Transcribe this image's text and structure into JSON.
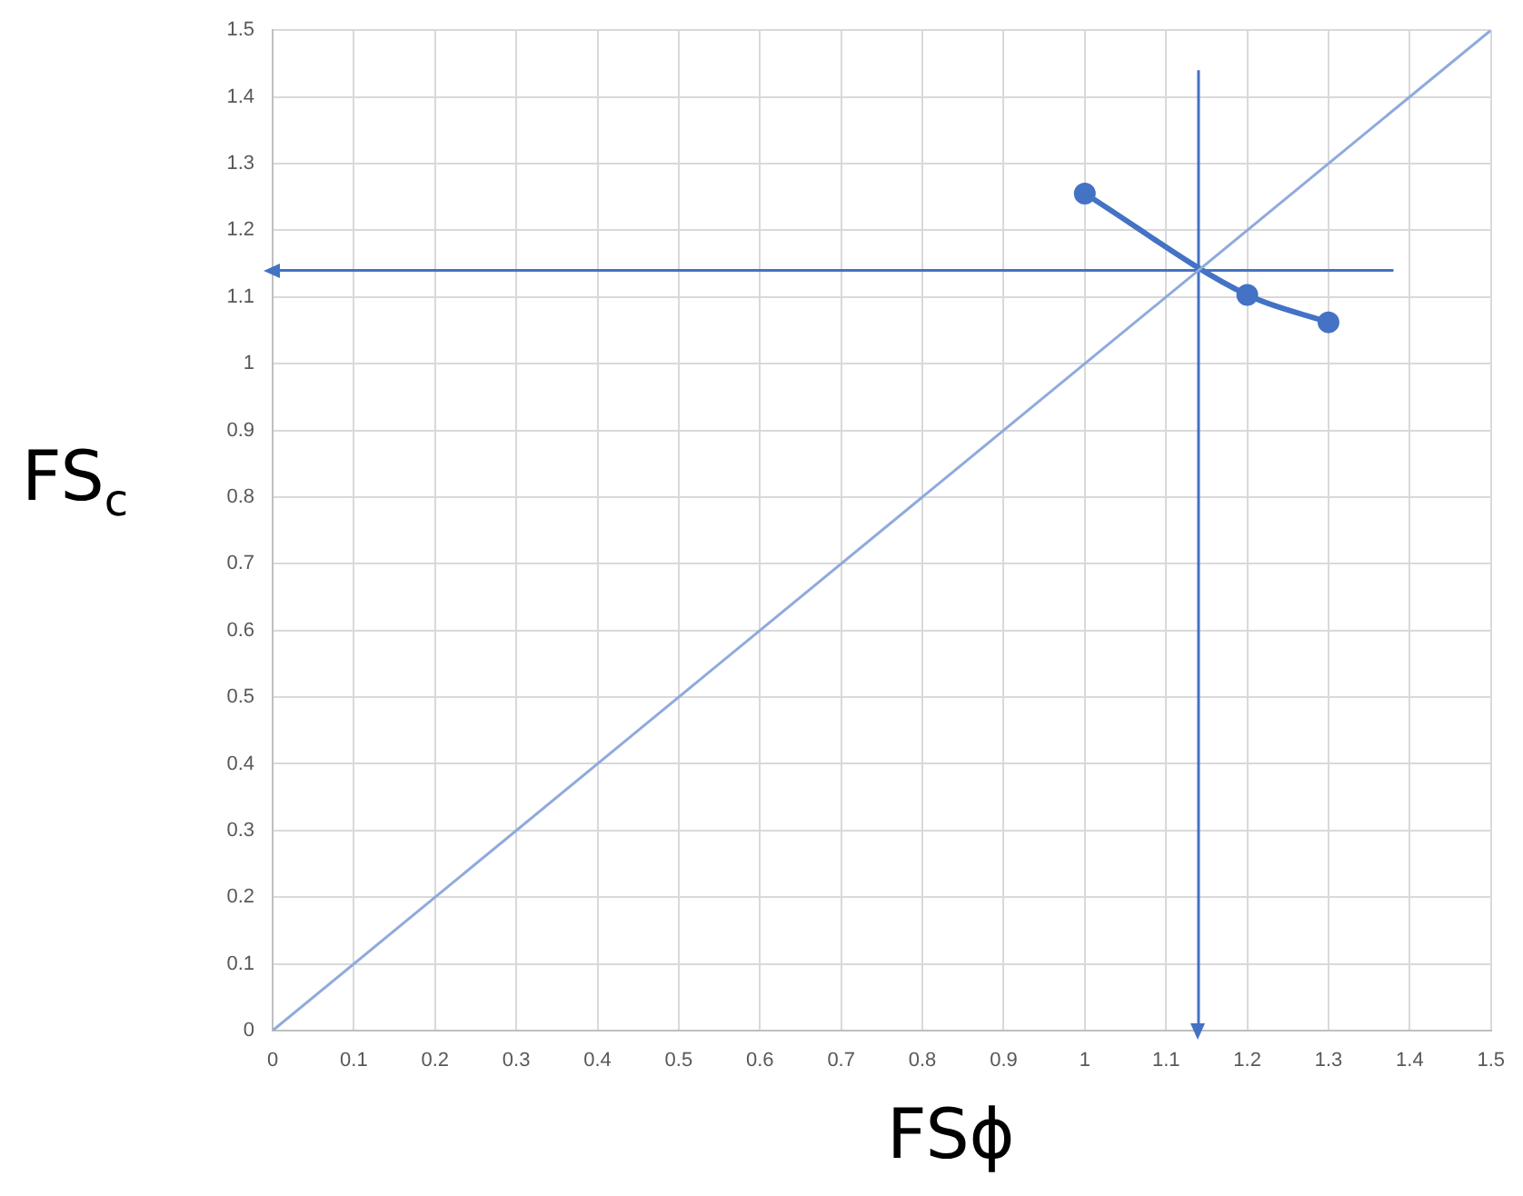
{
  "chart_data": {
    "type": "line",
    "xlabel": "FSϕ",
    "ylabel": "FS$_{c}$",
    "xlim": [
      0,
      1.5
    ],
    "ylim": [
      0,
      1.5
    ],
    "xticks": [
      0,
      0.1,
      0.2,
      0.3,
      0.4,
      0.5,
      0.6,
      0.7,
      0.8,
      0.9,
      1,
      1.1,
      1.2,
      1.3,
      1.4,
      1.5
    ],
    "yticks": [
      0,
      0.1,
      0.2,
      0.3,
      0.4,
      0.5,
      0.6,
      0.7,
      0.8,
      0.9,
      1,
      1.1,
      1.2,
      1.3,
      1.4,
      1.5
    ],
    "grid": true,
    "legend": false,
    "series": [
      {
        "color": "#8faadc",
        "x": [
          0,
          1.5
        ],
        "values": [
          0,
          1.5
        ],
        "marker": "none"
      },
      {
        "color": "#4472c4",
        "x": [
          1,
          1.2,
          1.3
        ],
        "values": [
          1.255,
          1.103,
          1.062
        ],
        "marker": "circle"
      },
      {
        "color": "#4472c4",
        "x": [
          1.38,
          0
        ],
        "values": [
          1.14,
          1.14
        ]
      },
      {
        "color": "#4472c4",
        "x": [
          1.14,
          1.14
        ],
        "values": [
          1.44,
          0
        ]
      }
    ]
  }
}
